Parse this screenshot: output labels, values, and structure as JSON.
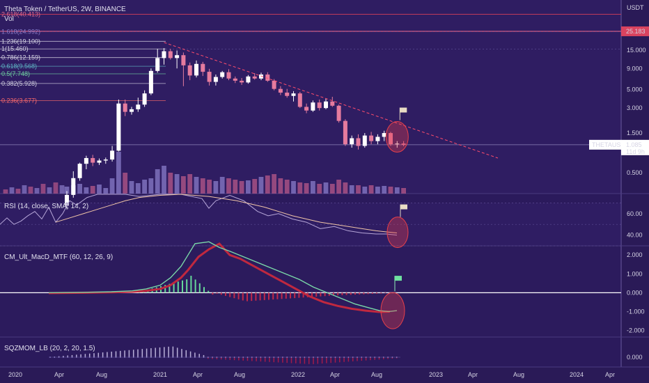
{
  "header": {
    "title": "Theta Token / TetherUS, 2W, BINANCE",
    "vol_label": "Vol",
    "currency": "USDT"
  },
  "colors": {
    "bg": "#2a1a57",
    "up": "#ffffff",
    "down": "#e57b9e",
    "vol_up": "#8a7cc9",
    "vol_down": "#b8588a",
    "price_level": "#ff6b8a",
    "trendline": "#ff4d6d",
    "rsi": "#b7a7d9",
    "rsi_ma": "#f2c6a8",
    "macd_fast": "#ffffff",
    "macd_signal": "#c0283f",
    "macd_up": "#66d99a",
    "macd_down": "#c0284a",
    "circle": "#e8404a"
  },
  "price_axis": {
    "ticks": [
      "15.000",
      "9.000",
      "5.000",
      "3.000",
      "1.500",
      "0.500"
    ],
    "current_level": "25.183",
    "symbol": "THETAUSDT",
    "last": "1.085",
    "countdown": "11d 9h"
  },
  "fib_levels": [
    {
      "label": "2.618(40.413)",
      "color": "#e06a8e"
    },
    {
      "label": "1.618(24.992)",
      "color": "#8a7cc9"
    },
    {
      "label": "1.236(19.100)",
      "color": "#d6d4e4"
    },
    {
      "label": "1(15.460)",
      "color": "#d6d4e4"
    },
    {
      "label": "0.786(12.159)",
      "color": "#d6d4e4"
    },
    {
      "label": "0.618(9.568)",
      "color": "#5fb8c6"
    },
    {
      "label": "0.5(7.748)",
      "color": "#6fd0a0"
    },
    {
      "label": "0.382(5.928)",
      "color": "#d6d4e4"
    },
    {
      "label": "0.236(3.677)",
      "color": "#ff6b6b"
    }
  ],
  "rsi": {
    "label": "RSI (14, close, SMA, 14, 2)",
    "ticks": [
      "60.00",
      "40.00"
    ]
  },
  "macd": {
    "label": "CM_Ult_MacD_MTF (60, 12, 26, 9)",
    "ticks": [
      "2.000",
      "1.000",
      "0.000",
      "-1.000",
      "-2.000"
    ]
  },
  "sqz": {
    "label": "SQZMOM_LB (20, 2, 20, 1.5)",
    "ticks": [
      "0.000"
    ]
  },
  "time_axis": [
    "2020",
    "Apr",
    "Aug",
    "2021",
    "Apr",
    "Aug",
    "2022",
    "Apr",
    "Aug",
    "2023",
    "Apr",
    "Aug",
    "2024",
    "Apr"
  ],
  "chart_data": {
    "type": "candlestick",
    "symbol": "THETAUSDT",
    "interval": "2W",
    "y_scale": "log",
    "annotations": [
      "descending trendline",
      "circled breakout area with flag"
    ],
    "candles": [
      {
        "o": 0.2,
        "h": 0.3,
        "l": 0.18,
        "c": 0.27
      },
      {
        "o": 0.27,
        "h": 0.52,
        "l": 0.25,
        "c": 0.43
      },
      {
        "o": 0.43,
        "h": 0.66,
        "l": 0.4,
        "c": 0.64
      },
      {
        "o": 0.64,
        "h": 0.8,
        "l": 0.55,
        "c": 0.75
      },
      {
        "o": 0.75,
        "h": 0.82,
        "l": 0.6,
        "c": 0.66
      },
      {
        "o": 0.66,
        "h": 0.74,
        "l": 0.62,
        "c": 0.7
      },
      {
        "o": 0.7,
        "h": 0.76,
        "l": 0.64,
        "c": 0.72
      },
      {
        "o": 0.72,
        "h": 1.05,
        "l": 0.68,
        "c": 0.92
      },
      {
        "o": 0.92,
        "h": 3.8,
        "l": 0.9,
        "c": 3.4
      },
      {
        "o": 3.4,
        "h": 3.8,
        "l": 2.4,
        "c": 2.7
      },
      {
        "o": 2.7,
        "h": 3.1,
        "l": 2.5,
        "c": 2.9
      },
      {
        "o": 2.9,
        "h": 4.0,
        "l": 2.7,
        "c": 3.3
      },
      {
        "o": 3.3,
        "h": 4.9,
        "l": 3.1,
        "c": 4.5
      },
      {
        "o": 4.5,
        "h": 9.0,
        "l": 4.3,
        "c": 8.4
      },
      {
        "o": 8.4,
        "h": 15.5,
        "l": 8.0,
        "c": 12.0
      },
      {
        "o": 12.0,
        "h": 15.8,
        "l": 10.0,
        "c": 14.5
      },
      {
        "o": 14.5,
        "h": 15.5,
        "l": 11.5,
        "c": 12.0
      },
      {
        "o": 12.0,
        "h": 14.8,
        "l": 9.0,
        "c": 13.0
      },
      {
        "o": 13.0,
        "h": 14.0,
        "l": 5.5,
        "c": 9.8
      },
      {
        "o": 9.8,
        "h": 10.6,
        "l": 6.5,
        "c": 7.4
      },
      {
        "o": 7.4,
        "h": 11.2,
        "l": 7.0,
        "c": 10.2
      },
      {
        "o": 10.2,
        "h": 10.8,
        "l": 7.3,
        "c": 8.2
      },
      {
        "o": 8.2,
        "h": 8.9,
        "l": 5.6,
        "c": 6.2
      },
      {
        "o": 6.2,
        "h": 7.6,
        "l": 5.6,
        "c": 7.1
      },
      {
        "o": 7.1,
        "h": 8.4,
        "l": 6.8,
        "c": 8.1
      },
      {
        "o": 8.1,
        "h": 8.8,
        "l": 6.5,
        "c": 6.8
      },
      {
        "o": 6.8,
        "h": 7.2,
        "l": 6.0,
        "c": 6.4
      },
      {
        "o": 6.4,
        "h": 6.9,
        "l": 5.7,
        "c": 6.1
      },
      {
        "o": 6.1,
        "h": 7.5,
        "l": 5.9,
        "c": 7.2
      },
      {
        "o": 7.2,
        "h": 7.9,
        "l": 6.6,
        "c": 6.8
      },
      {
        "o": 6.8,
        "h": 8.0,
        "l": 6.5,
        "c": 7.6
      },
      {
        "o": 7.6,
        "h": 8.1,
        "l": 6.2,
        "c": 6.4
      },
      {
        "o": 6.4,
        "h": 6.7,
        "l": 4.9,
        "c": 5.1
      },
      {
        "o": 5.1,
        "h": 5.5,
        "l": 4.3,
        "c": 4.6
      },
      {
        "o": 4.6,
        "h": 5.1,
        "l": 4.0,
        "c": 4.2
      },
      {
        "o": 4.2,
        "h": 4.8,
        "l": 3.6,
        "c": 4.5
      },
      {
        "o": 4.5,
        "h": 4.7,
        "l": 3.0,
        "c": 3.1
      },
      {
        "o": 3.1,
        "h": 3.4,
        "l": 2.6,
        "c": 2.8
      },
      {
        "o": 2.8,
        "h": 3.7,
        "l": 2.7,
        "c": 3.5
      },
      {
        "o": 3.5,
        "h": 3.8,
        "l": 2.8,
        "c": 3.0
      },
      {
        "o": 3.0,
        "h": 3.9,
        "l": 2.9,
        "c": 3.6
      },
      {
        "o": 3.6,
        "h": 4.1,
        "l": 3.1,
        "c": 3.2
      },
      {
        "o": 3.2,
        "h": 3.3,
        "l": 2.0,
        "c": 2.1
      },
      {
        "o": 2.1,
        "h": 2.2,
        "l": 1.05,
        "c": 1.1
      },
      {
        "o": 1.1,
        "h": 1.4,
        "l": 1.0,
        "c": 1.3
      },
      {
        "o": 1.3,
        "h": 1.45,
        "l": 0.95,
        "c": 1.05
      },
      {
        "o": 1.05,
        "h": 1.5,
        "l": 1.0,
        "c": 1.4
      },
      {
        "o": 1.4,
        "h": 1.55,
        "l": 1.1,
        "c": 1.2
      },
      {
        "o": 1.2,
        "h": 1.45,
        "l": 1.1,
        "c": 1.35
      },
      {
        "o": 1.35,
        "h": 1.6,
        "l": 1.2,
        "c": 1.5
      },
      {
        "o": 1.5,
        "h": 1.55,
        "l": 1.05,
        "c": 1.1
      },
      {
        "o": 1.1,
        "h": 1.2,
        "l": 1.0,
        "c": 1.12
      },
      {
        "o": 1.12,
        "h": 1.2,
        "l": 1.04,
        "c": 1.085
      }
    ]
  }
}
